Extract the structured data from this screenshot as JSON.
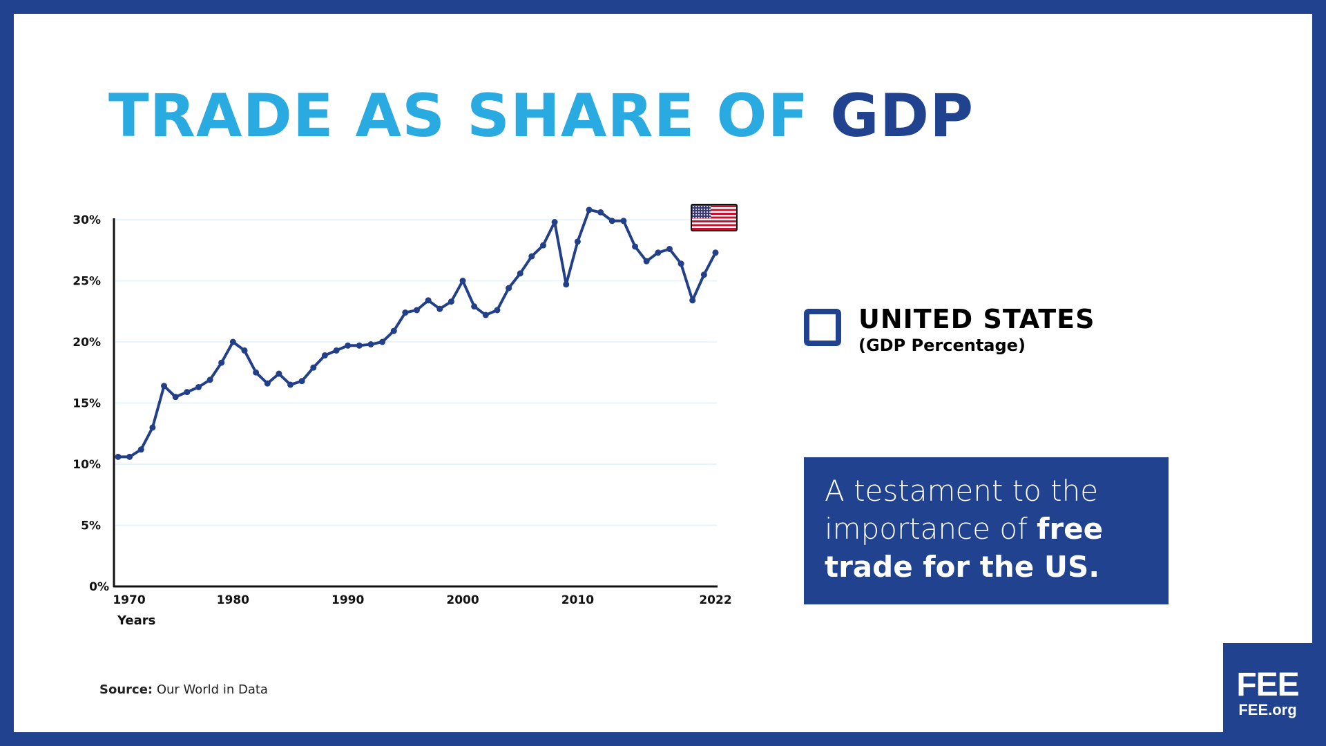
{
  "title": {
    "part1": "TRADE AS SHARE OF ",
    "part2": "GDP"
  },
  "legend": {
    "title": "UNITED STATES",
    "subtitle": "(GDP Percentage)",
    "icon": "square-outline-icon",
    "flag": "us-flag-icon"
  },
  "callout": {
    "text_light_1": "A testament to the importance of ",
    "text_bold": "free trade for the US."
  },
  "source": {
    "label": "Source:",
    "text": " Our World in Data"
  },
  "logo": {
    "big": "FEE",
    "small": "FEE.org"
  },
  "colors": {
    "border": "#21428f",
    "title_light": "#29abe2",
    "title_dark": "#21428f",
    "line": "#223f8a",
    "grid": "#e6f4fb"
  },
  "chart_data": {
    "type": "line",
    "xlabel": "Years",
    "ylabel": "",
    "ylim": [
      0,
      30
    ],
    "xlim": [
      1970,
      2022
    ],
    "grid": "horizontal",
    "yticks": [
      "0%",
      "5%",
      "10%",
      "15%",
      "20%",
      "25%",
      "30%"
    ],
    "xticks": [
      "1970",
      "1980",
      "1990",
      "2000",
      "2010",
      "2022"
    ],
    "series": [
      {
        "name": "UNITED STATES",
        "x": [
          1970,
          1971,
          1972,
          1973,
          1974,
          1975,
          1976,
          1977,
          1978,
          1979,
          1980,
          1981,
          1982,
          1983,
          1984,
          1985,
          1986,
          1987,
          1988,
          1989,
          1990,
          1991,
          1992,
          1993,
          1994,
          1995,
          1996,
          1997,
          1998,
          1999,
          2000,
          2001,
          2002,
          2003,
          2004,
          2005,
          2006,
          2007,
          2008,
          2009,
          2010,
          2011,
          2012,
          2013,
          2014,
          2015,
          2016,
          2017,
          2018,
          2019,
          2020,
          2021,
          2022
        ],
        "values": [
          10.6,
          10.6,
          11.2,
          13.0,
          16.4,
          15.5,
          15.9,
          16.3,
          16.9,
          18.3,
          20.0,
          19.3,
          17.5,
          16.6,
          17.4,
          16.5,
          16.8,
          17.9,
          18.9,
          19.3,
          19.7,
          19.7,
          19.8,
          20.0,
          20.9,
          22.4,
          22.6,
          23.4,
          22.7,
          23.3,
          25.0,
          22.9,
          22.2,
          22.6,
          24.4,
          25.6,
          27.0,
          27.9,
          29.8,
          24.7,
          28.2,
          30.8,
          30.6,
          29.9,
          29.9,
          27.8,
          26.6,
          27.3,
          27.6,
          26.4,
          23.4,
          25.5,
          27.3
        ]
      }
    ]
  }
}
